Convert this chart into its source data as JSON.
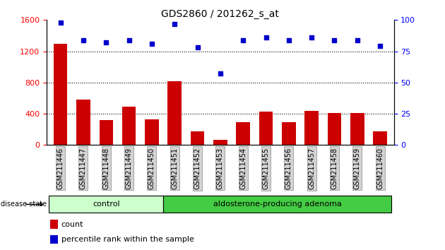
{
  "title": "GDS2860 / 201262_s_at",
  "samples": [
    "GSM211446",
    "GSM211447",
    "GSM211448",
    "GSM211449",
    "GSM211450",
    "GSM211451",
    "GSM211452",
    "GSM211453",
    "GSM211454",
    "GSM211455",
    "GSM211456",
    "GSM211457",
    "GSM211458",
    "GSM211459",
    "GSM211460"
  ],
  "counts": [
    1300,
    580,
    320,
    490,
    330,
    820,
    175,
    65,
    295,
    430,
    295,
    440,
    410,
    410,
    175
  ],
  "percentiles": [
    98,
    84,
    82,
    84,
    81,
    97,
    78,
    57,
    84,
    86,
    84,
    86,
    84,
    84,
    79
  ],
  "bar_color": "#cc0000",
  "dot_color": "#0000cc",
  "control_color": "#ccffcc",
  "adenoma_color": "#44cc44",
  "left_ylim": [
    0,
    1600
  ],
  "right_ylim": [
    0,
    100
  ],
  "left_yticks": [
    0,
    400,
    800,
    1200,
    1600
  ],
  "right_yticks": [
    0,
    25,
    50,
    75,
    100
  ],
  "grid_lines": [
    400,
    800,
    1200
  ],
  "legend_count_label": "count",
  "legend_percentile_label": "percentile rank within the sample",
  "n_control": 5,
  "n_adenoma": 10
}
